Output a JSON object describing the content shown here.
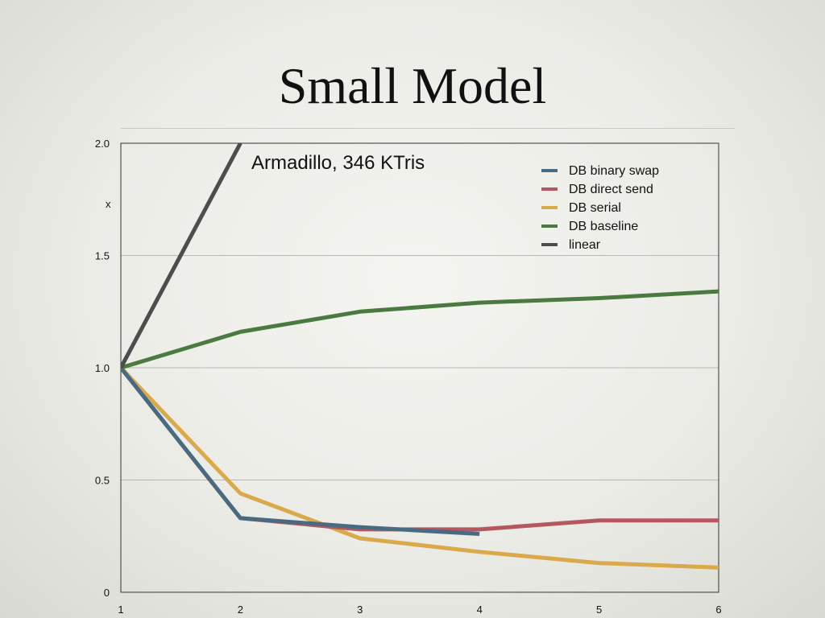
{
  "slide": {
    "title": "Small Model"
  },
  "chart_data": {
    "type": "line",
    "title": "",
    "annotation": "Armadillo,  346 KTris",
    "xlabel": "",
    "ylabel": "x",
    "x": [
      1,
      2,
      3,
      4,
      5,
      6
    ],
    "x_tick_labels": [
      "1",
      "2",
      "3",
      "4",
      "5",
      "6"
    ],
    "xlim": [
      1,
      6
    ],
    "ylim": [
      0,
      2.0
    ],
    "y_ticks": [
      0,
      0.5,
      1.0,
      1.5,
      2.0
    ],
    "y_tick_labels": [
      "0",
      "0.5",
      "1.0",
      "1.5",
      "2.0"
    ],
    "grid": "horizontal",
    "legend_position": "top-right",
    "series": [
      {
        "name": "DB binary swap",
        "color": "#4a6a82",
        "x": [
          1,
          2,
          3,
          4
        ],
        "values": [
          1.0,
          0.33,
          0.29,
          0.26
        ]
      },
      {
        "name": "DB direct send",
        "color": "#b5575e",
        "x": [
          1,
          2,
          3,
          4,
          5,
          6
        ],
        "values": [
          1.0,
          0.33,
          0.28,
          0.28,
          0.32,
          0.32
        ]
      },
      {
        "name": "DB serial",
        "color": "#d9a94a",
        "x": [
          1,
          2,
          3,
          4,
          5,
          6
        ],
        "values": [
          1.0,
          0.44,
          0.24,
          0.18,
          0.13,
          0.11
        ]
      },
      {
        "name": "DB baseline",
        "color": "#4a7a40",
        "x": [
          1,
          2,
          3,
          4,
          5,
          6
        ],
        "values": [
          1.0,
          1.16,
          1.25,
          1.29,
          1.31,
          1.34
        ]
      },
      {
        "name": "linear",
        "color": "#4d4d4d",
        "x": [
          1,
          2
        ],
        "values": [
          1.0,
          2.0
        ]
      }
    ]
  }
}
